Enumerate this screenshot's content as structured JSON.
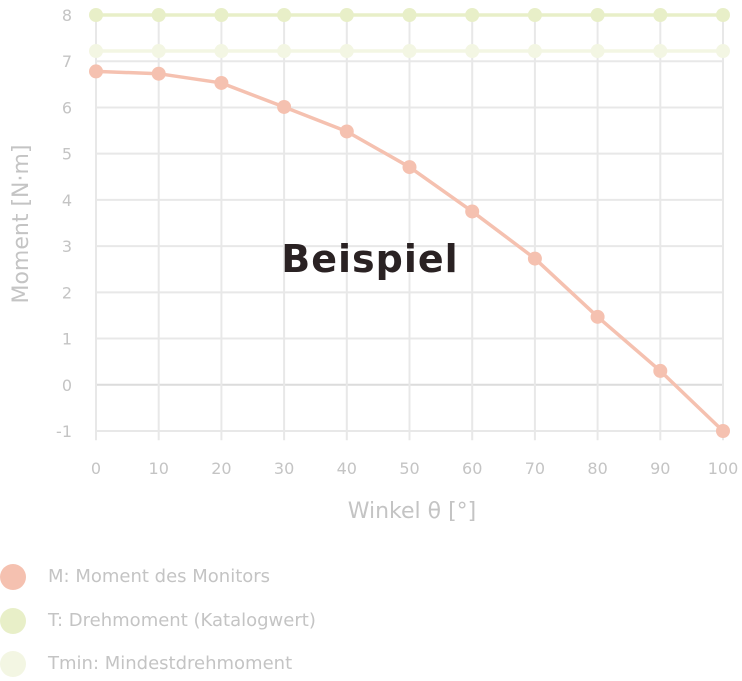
{
  "chart_data": {
    "type": "line",
    "title": "",
    "watermark": "Beispiel",
    "xlabel": "Winkel θ [°]",
    "ylabel": "Moment [N·m]",
    "x": [
      0,
      10,
      20,
      30,
      40,
      50,
      60,
      70,
      80,
      90,
      100
    ],
    "xlim": [
      0,
      100
    ],
    "ylim": [
      -1.2,
      8
    ],
    "xticks": [
      "0",
      "10",
      "20",
      "30",
      "40",
      "50",
      "60",
      "70",
      "80",
      "90",
      "100"
    ],
    "yticks": [
      "-1",
      "0",
      "1",
      "2",
      "3",
      "4",
      "5",
      "6",
      "7",
      "8"
    ],
    "grid": true,
    "legend_position": "bottom-left",
    "series": [
      {
        "name": "M: Moment des Monitors",
        "color": "#f5c1b0",
        "values": [
          6.78,
          6.73,
          6.53,
          6.01,
          5.48,
          4.71,
          3.75,
          2.73,
          1.47,
          0.3,
          -1.0
        ]
      },
      {
        "name": "T: Drehmoment (Katalogwert)",
        "color": "#e8efc8",
        "values": [
          8.0,
          8.0,
          8.0,
          8.0,
          8.0,
          8.0,
          8.0,
          8.0,
          8.0,
          8.0,
          8.0
        ]
      },
      {
        "name": "Tmin: Mindestdrehmoment",
        "color": "#f3f6e3",
        "values": [
          7.22,
          7.22,
          7.22,
          7.22,
          7.22,
          7.22,
          7.22,
          7.22,
          7.22,
          7.22,
          7.22
        ]
      }
    ]
  }
}
